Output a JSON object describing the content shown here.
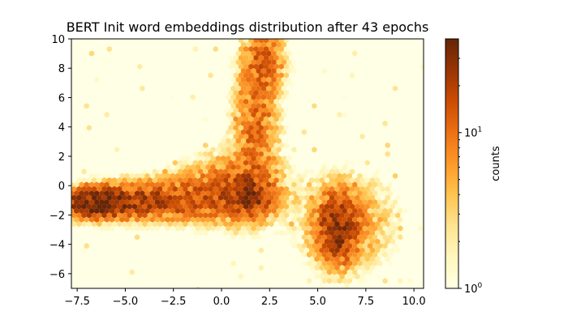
{
  "chart_data": {
    "type": "heatmap",
    "subtype": "hexbin",
    "title": "BERT Init word embeddings distribution after 43 epochs",
    "xlabel": "",
    "ylabel": "",
    "xlim": [
      -7.8,
      10.5
    ],
    "ylim": [
      -7,
      10
    ],
    "x_ticks": [
      -7.5,
      -5.0,
      -2.5,
      0.0,
      2.5,
      5.0,
      7.5,
      10.0
    ],
    "x_tick_labels": [
      "−7.5",
      "−5.0",
      "−2.5",
      "0.0",
      "2.5",
      "5.0",
      "7.5",
      "10.0"
    ],
    "y_ticks": [
      -6,
      -4,
      -2,
      0,
      2,
      4,
      6,
      8,
      10
    ],
    "y_tick_labels": [
      "−6",
      "−4",
      "−2",
      "0",
      "2",
      "4",
      "6",
      "8",
      "10"
    ],
    "colormap": "YlOrBr",
    "colormap_stops": [
      "#ffffe5",
      "#fff7bc",
      "#fee391",
      "#fec44f",
      "#fe9929",
      "#ec7014",
      "#cc4c02",
      "#993404",
      "#662506"
    ],
    "background_color": "#ffffe5",
    "colorbar": {
      "label": "counts",
      "scale": "log",
      "range": [
        1,
        40
      ],
      "tick_labels": [
        {
          "value": 1,
          "base": "10",
          "exp": "0"
        },
        {
          "value": 10,
          "base": "10",
          "exp": "1"
        }
      ]
    },
    "clusters": [
      {
        "name": "horizontal band",
        "cx": -6.5,
        "cy": -1.2,
        "sx": 1.1,
        "sy": 0.6,
        "peak": 40
      },
      {
        "name": "horizontal band mid",
        "cx": -3.5,
        "cy": -1.0,
        "sx": 2.0,
        "sy": 0.8,
        "peak": 20
      },
      {
        "name": "center cluster",
        "cx": 1.5,
        "cy": -0.8,
        "sx": 0.7,
        "sy": 0.8,
        "peak": 20
      },
      {
        "name": "center spread",
        "cx": 0.5,
        "cy": -0.3,
        "sx": 1.6,
        "sy": 1.4,
        "peak": 12
      },
      {
        "name": "vertical arm",
        "cx": 1.8,
        "cy": 4.0,
        "sx": 0.7,
        "sy": 2.6,
        "peak": 11
      },
      {
        "name": "top arm",
        "cx": 2.2,
        "cy": 8.5,
        "sx": 0.7,
        "sy": 1.3,
        "peak": 12
      },
      {
        "name": "lower right cluster",
        "cx": 6.0,
        "cy": -3.0,
        "sx": 0.6,
        "sy": 1.4,
        "peak": 26
      },
      {
        "name": "lower right spread",
        "cx": 6.5,
        "cy": -2.5,
        "sx": 1.5,
        "sy": 2.0,
        "peak": 7
      }
    ]
  }
}
